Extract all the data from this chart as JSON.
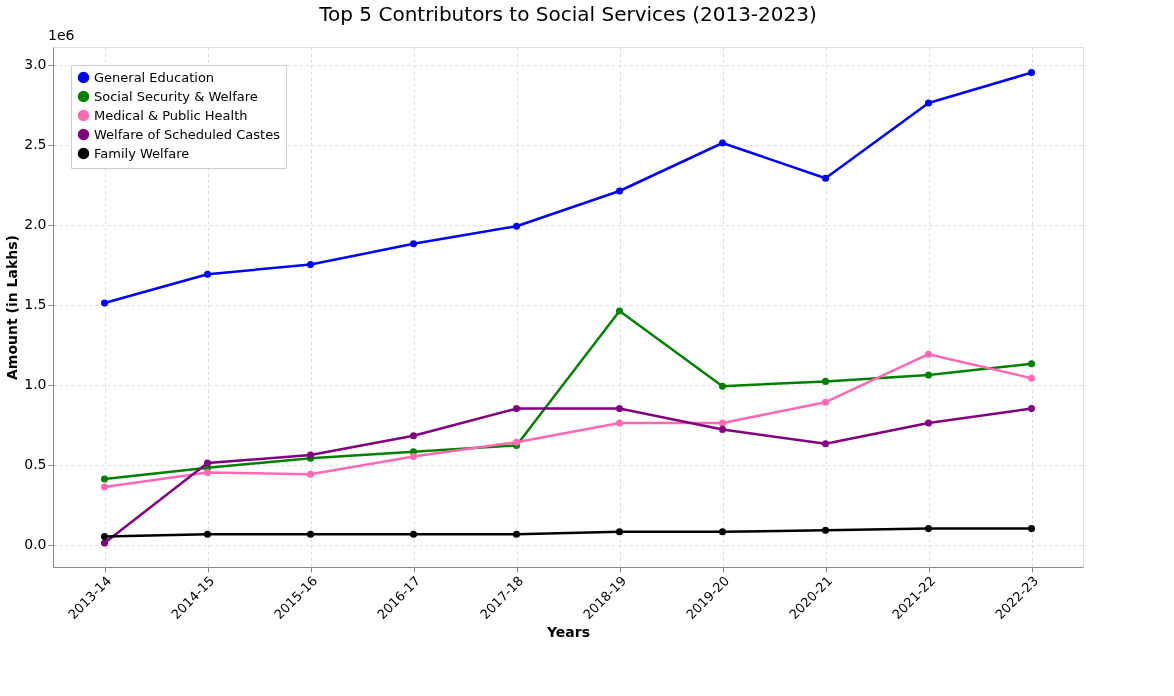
{
  "chart_data": {
    "type": "line",
    "title": "Top 5 Contributors to Social Services (2013-2023)",
    "xlabel": "Years",
    "ylabel": "Amount (in Lakhs)",
    "annotations": [
      "1e6"
    ],
    "categories": [
      "2013-14",
      "2014-15",
      "2015-16",
      "2016-17",
      "2017-18",
      "2018-19",
      "2019-20",
      "2020-21",
      "2021-22",
      "2022-23"
    ],
    "series": [
      {
        "name": "General Education",
        "color": "#0000ff",
        "values": [
          1.51,
          1.69,
          1.75,
          1.88,
          1.99,
          2.21,
          2.51,
          2.29,
          2.76,
          2.95
        ]
      },
      {
        "name": "Social Security & Welfare",
        "color": "#008000",
        "values": [
          0.41,
          0.48,
          0.54,
          0.58,
          0.62,
          1.46,
          0.99,
          1.02,
          1.06,
          1.13
        ]
      },
      {
        "name": "Medical & Public Health",
        "color": "#ff69b4",
        "values": [
          0.36,
          0.45,
          0.44,
          0.55,
          0.64,
          0.76,
          0.76,
          0.89,
          1.19,
          1.04
        ]
      },
      {
        "name": "Welfare of Scheduled Castes",
        "color": "#800080",
        "values": [
          0.01,
          0.51,
          0.56,
          0.68,
          0.85,
          0.85,
          0.72,
          0.63,
          0.76,
          0.85
        ]
      },
      {
        "name": "Family Welfare",
        "color": "#000000",
        "values": [
          0.05,
          0.065,
          0.065,
          0.065,
          0.065,
          0.08,
          0.08,
          0.09,
          0.1,
          0.1
        ]
      }
    ],
    "ylim": [
      -0.14,
      3.11
    ],
    "yticks": [
      {
        "value": 0,
        "label": "0.0"
      },
      {
        "value": 0.5,
        "label": "0.5"
      },
      {
        "value": 1,
        "label": "1.0"
      },
      {
        "value": 1.5,
        "label": "1.5"
      },
      {
        "value": 2,
        "label": "2.0"
      },
      {
        "value": 2.5,
        "label": "2.5"
      },
      {
        "value": 3,
        "label": "3.0"
      }
    ],
    "grid": true,
    "legend": "top left",
    "marker": "circle",
    "line_style": "solid"
  }
}
